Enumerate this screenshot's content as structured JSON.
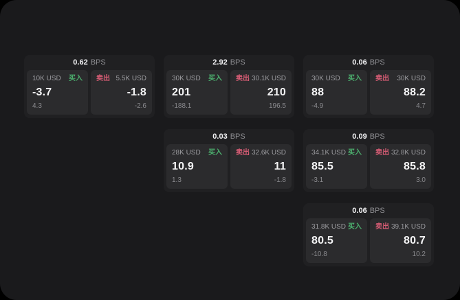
{
  "labels": {
    "bps_unit": "BPS",
    "buy": "买入",
    "sell": "卖出"
  },
  "colors": {
    "buy_green": "#4caf6e",
    "sell_red": "#d65c74",
    "window_bg": "#1a1a1c",
    "card_bg": "#202022",
    "panel_bg": "#2b2b2d"
  },
  "cards": [
    {
      "bps": "0.62",
      "buy": {
        "amount": "10K USD",
        "price": "-3.7",
        "change": "4.3"
      },
      "sell": {
        "amount": "5.5K USD",
        "price": "-1.8",
        "change": "-2.6"
      }
    },
    {
      "bps": "2.92",
      "buy": {
        "amount": "30K USD",
        "price": "201",
        "change": "-188.1"
      },
      "sell": {
        "amount": "30.1K USD",
        "price": "210",
        "change": "196.5"
      }
    },
    {
      "bps": "0.06",
      "buy": {
        "amount": "30K USD",
        "price": "88",
        "change": "-4.9"
      },
      "sell": {
        "amount": "30K USD",
        "price": "88.2",
        "change": "4.7"
      }
    },
    {
      "bps": "0.03",
      "buy": {
        "amount": "28K USD",
        "price": "10.9",
        "change": "1.3"
      },
      "sell": {
        "amount": "32.6K USD",
        "price": "11",
        "change": "-1.8"
      }
    },
    {
      "bps": "0.09",
      "buy": {
        "amount": "34.1K USD",
        "price": "85.5",
        "change": "-3.1"
      },
      "sell": {
        "amount": "32.8K USD",
        "price": "85.8",
        "change": "3.0"
      }
    },
    {
      "bps": "0.06",
      "buy": {
        "amount": "31.8K USD",
        "price": "80.5",
        "change": "-10.8"
      },
      "sell": {
        "amount": "39.1K USD",
        "price": "80.7",
        "change": "10.2"
      }
    }
  ]
}
